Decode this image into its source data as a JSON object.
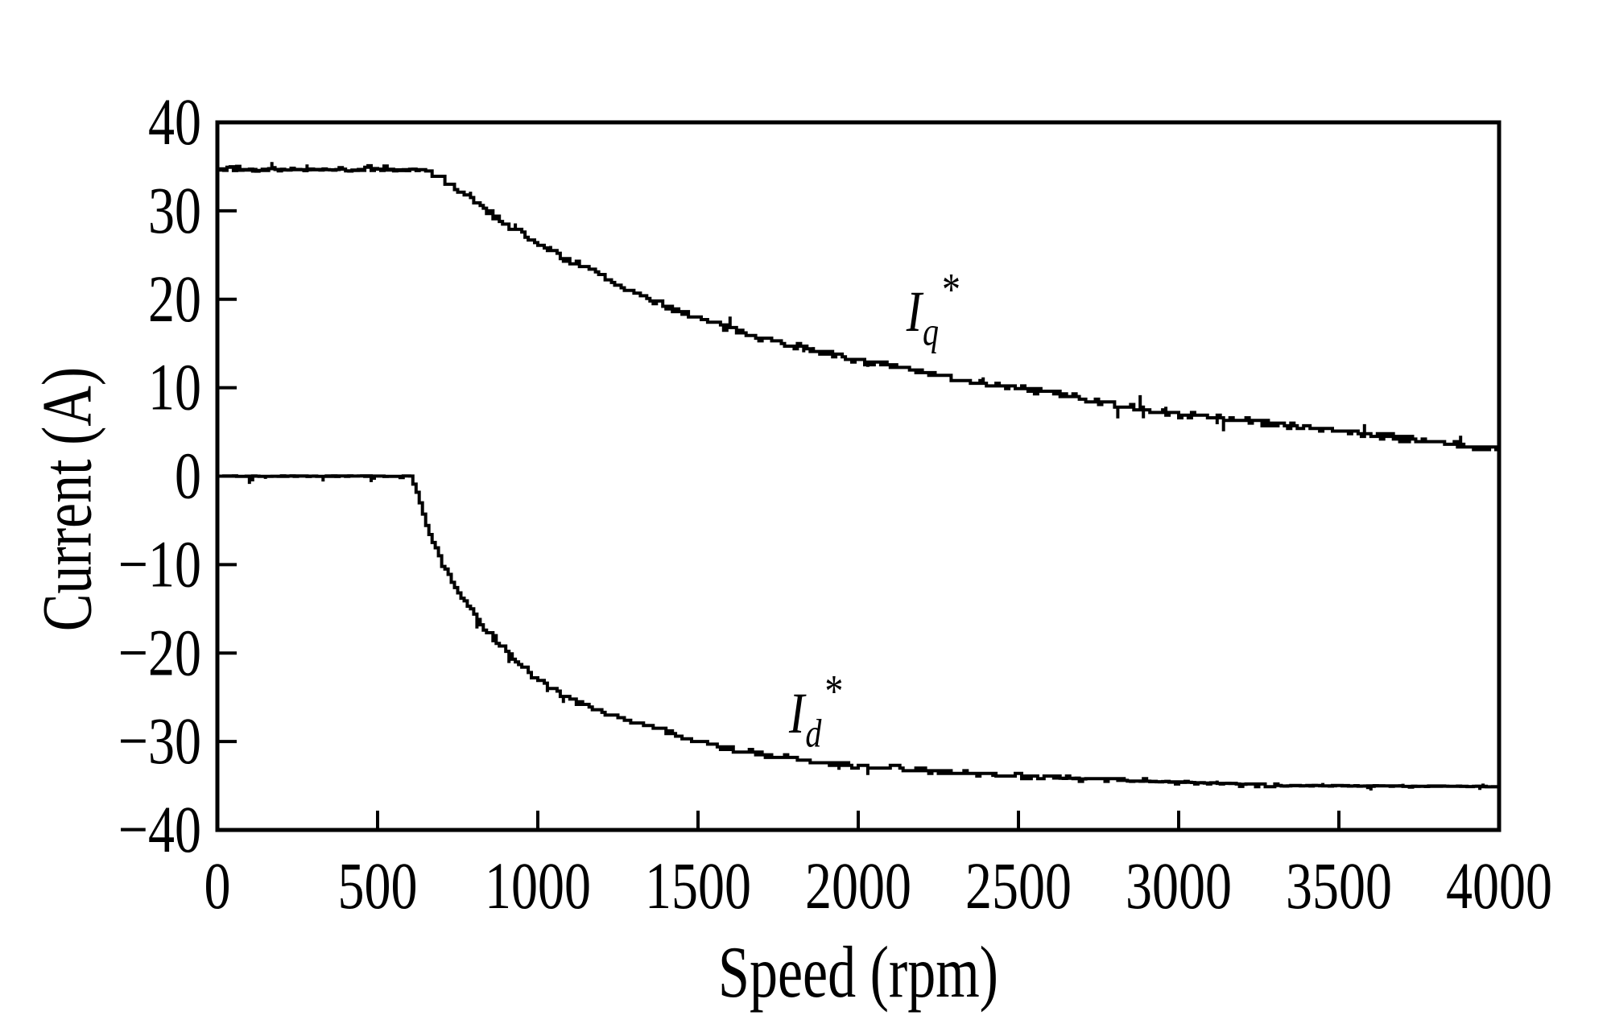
{
  "page": {
    "background": "#ffffff",
    "foreground": "#000000"
  },
  "chart_data": {
    "type": "line",
    "title": "",
    "xlabel": "Speed (rpm)",
    "ylabel": "Current (A)",
    "xlim": [
      0,
      4000
    ],
    "ylim": [
      -40,
      40
    ],
    "xticks": [
      0,
      500,
      1000,
      1500,
      2000,
      2500,
      3000,
      3500,
      4000
    ],
    "yticks": [
      40,
      30,
      20,
      10,
      0,
      -10,
      -20,
      -30,
      -40
    ],
    "grid": false,
    "frame": true,
    "legend_position": "none",
    "background": "#ffffff",
    "color": "#000000",
    "noise": {
      "step_rpm": 10,
      "quantum": 0.3,
      "spike_prob": 0.05
    },
    "series": [
      {
        "id": "iq",
        "name": "Iq*",
        "color": "#000000",
        "width": 4,
        "seed": 7,
        "amp": 0.3,
        "flat_amp": 0.12,
        "flat_bump": 0.5,
        "flat_bump_prob": 0.3,
        "spike_amp": 1.1,
        "points": [
          [
            0,
            34.6
          ],
          [
            640,
            34.6
          ],
          [
            660,
            34.2
          ],
          [
            700,
            33.6
          ],
          [
            750,
            32.2
          ],
          [
            800,
            31.0
          ],
          [
            850,
            29.6
          ],
          [
            900,
            28.4
          ],
          [
            950,
            27.3
          ],
          [
            1000,
            26.2
          ],
          [
            1050,
            25.2
          ],
          [
            1100,
            24.3
          ],
          [
            1150,
            23.5
          ],
          [
            1200,
            22.7
          ],
          [
            1250,
            21.6
          ],
          [
            1300,
            20.7
          ],
          [
            1350,
            19.9
          ],
          [
            1400,
            19.2
          ],
          [
            1450,
            18.5
          ],
          [
            1500,
            17.8
          ],
          [
            1550,
            17.2
          ],
          [
            1600,
            16.6
          ],
          [
            1700,
            15.6
          ],
          [
            1800,
            14.7
          ],
          [
            1900,
            13.8
          ],
          [
            2000,
            13.1
          ],
          [
            2100,
            12.4
          ],
          [
            2200,
            11.7
          ],
          [
            2300,
            11.0
          ],
          [
            2400,
            10.4
          ],
          [
            2500,
            9.9
          ],
          [
            2600,
            9.4
          ],
          [
            2700,
            8.8
          ],
          [
            2800,
            8.0
          ],
          [
            2900,
            7.4
          ],
          [
            3000,
            7.0
          ],
          [
            3100,
            6.7
          ],
          [
            3200,
            6.3
          ],
          [
            3300,
            5.9
          ],
          [
            3400,
            5.6
          ],
          [
            3500,
            5.2
          ],
          [
            3600,
            4.7
          ],
          [
            3700,
            4.2
          ],
          [
            3800,
            3.8
          ],
          [
            3900,
            3.4
          ],
          [
            4000,
            3.1
          ]
        ]
      },
      {
        "id": "id",
        "name": "Id*",
        "color": "#000000",
        "width": 4,
        "seed": 41,
        "amp": 0.25,
        "flat_amp": 0.04,
        "flat_bump": -0.45,
        "flat_bump_prob": 0.07,
        "spike_amp": 0.8,
        "points": [
          [
            0,
            0
          ],
          [
            600,
            0
          ],
          [
            615,
            -1.2
          ],
          [
            630,
            -3.0
          ],
          [
            650,
            -5.6
          ],
          [
            675,
            -7.8
          ],
          [
            700,
            -9.9
          ],
          [
            725,
            -11.5
          ],
          [
            750,
            -13.0
          ],
          [
            775,
            -14.5
          ],
          [
            800,
            -15.8
          ],
          [
            825,
            -16.9
          ],
          [
            850,
            -18.0
          ],
          [
            875,
            -19.0
          ],
          [
            900,
            -19.9
          ],
          [
            925,
            -20.8
          ],
          [
            950,
            -21.6
          ],
          [
            975,
            -22.4
          ],
          [
            1000,
            -23.1
          ],
          [
            1050,
            -24.2
          ],
          [
            1100,
            -25.2
          ],
          [
            1150,
            -26.0
          ],
          [
            1200,
            -26.7
          ],
          [
            1250,
            -27.2
          ],
          [
            1300,
            -27.7
          ],
          [
            1350,
            -28.3
          ],
          [
            1400,
            -29.0
          ],
          [
            1450,
            -29.6
          ],
          [
            1500,
            -30.1
          ],
          [
            1550,
            -30.5
          ],
          [
            1600,
            -30.9
          ],
          [
            1700,
            -31.4
          ],
          [
            1800,
            -32.0
          ],
          [
            1900,
            -32.5
          ],
          [
            2000,
            -32.8
          ],
          [
            2100,
            -33.0
          ],
          [
            2200,
            -33.2
          ],
          [
            2300,
            -33.5
          ],
          [
            2400,
            -33.7
          ],
          [
            2500,
            -33.9
          ],
          [
            2600,
            -34.1
          ],
          [
            2700,
            -34.2
          ],
          [
            2800,
            -34.4
          ],
          [
            2900,
            -34.5
          ],
          [
            3000,
            -34.6
          ],
          [
            3100,
            -34.7
          ],
          [
            3200,
            -34.8
          ],
          [
            3300,
            -35.0
          ],
          [
            3500,
            -35.0
          ],
          [
            4000,
            -35.1
          ]
        ]
      }
    ],
    "annotations": [
      {
        "id": "iq",
        "base": "I",
        "sub": "q",
        "sup": "*",
        "x": 2150,
        "y": 18.9
      },
      {
        "id": "id",
        "base": "I",
        "sub": "d",
        "sup": "*",
        "x": 1784,
        "y": -26.5
      }
    ]
  }
}
